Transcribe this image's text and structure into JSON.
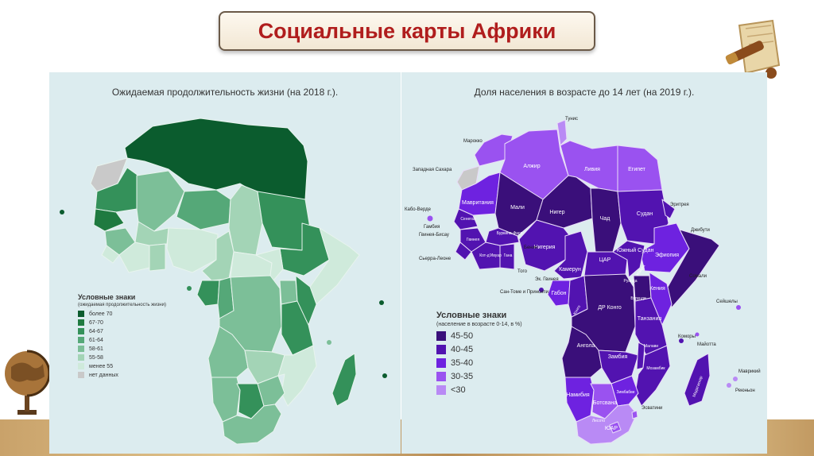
{
  "slide": {
    "title": "Социальные карты Африки"
  },
  "left_map": {
    "title": "Ожидаемая продолжительность жизни (на 2018 г.).",
    "legend_title": "Условные знаки",
    "legend_subtitle": "(ожидаемая продолжительность жизни)",
    "legend": [
      {
        "label": "более 70",
        "color": "#0b5c2e"
      },
      {
        "label": "67-70",
        "color": "#1f7a40"
      },
      {
        "label": "64-67",
        "color": "#34915a"
      },
      {
        "label": "61-64",
        "color": "#55a878"
      },
      {
        "label": "58-61",
        "color": "#7cbf98"
      },
      {
        "label": "55-58",
        "color": "#a3d4b6"
      },
      {
        "label": "менее 55",
        "color": "#cfeadb"
      },
      {
        "label": "нет данных",
        "color": "#c9c9c9"
      }
    ]
  },
  "right_map": {
    "title": "Доля населения в возрасте до 14 лет (на 2019 г.).",
    "legend_title": "Условные знаки",
    "legend_subtitle": "(население в возрасте 0-14, в %)",
    "legend": [
      {
        "label": "45-50",
        "color": "#3a0f7a"
      },
      {
        "label": "40-45",
        "color": "#5213b0"
      },
      {
        "label": "35-40",
        "color": "#6e22e0"
      },
      {
        "label": "30-35",
        "color": "#9a52f0"
      },
      {
        "label": "<30",
        "color": "#b98af5"
      }
    ],
    "labels": {
      "tunis": "Тунис",
      "morocco": "Марокко",
      "w_sahara": "Западная Сахара",
      "algeria": "Алжир",
      "libya": "Ливия",
      "egypt": "Египет",
      "cabo_verde": "Кабо-Верде",
      "mauritania": "Мавритания",
      "mali": "Мали",
      "niger": "Нигер",
      "chad": "Чад",
      "sudan": "Судан",
      "eritrea": "Эритрея",
      "senegal": "Сенегал",
      "gambia": "Гамбия",
      "guinea_bissau": "Гвинея-Бисау",
      "guinea": "Гвинея",
      "burkina": "Буркина-Фасо",
      "djibouti": "Джибути",
      "sierra_leone": "Сьерра-Леоне",
      "cote_divoire": "Кот-д'Ивуар",
      "ghana": "Гана",
      "togo": "Того",
      "benin": "Бенин",
      "nigeria": "Нигерия",
      "car": "ЦАР",
      "south_sudan": "Южный Судан",
      "ethiopia": "Эфиопия",
      "somalia": "Сомали",
      "cameroon": "Камерун",
      "eq_guinea": "Эк. Гвинея",
      "sao_tome": "Сан-Томе и Принсипи",
      "gabon": "Габон",
      "congo": "Конго",
      "uganda": "Уганда",
      "kenya": "Кения",
      "rwanda": "Руанда",
      "burundi": "Бурунди",
      "drc": "ДР Конго",
      "tanzania": "Танзания",
      "seychelles": "Сейшелы",
      "comoros": "Коморы",
      "mayotte": "Майотта",
      "angola": "Ангола",
      "malawi": "Малави",
      "zambia": "Замбия",
      "mozambique": "Мозамбик",
      "zimbabwe": "Зимбабве",
      "madagascar": "Мадагаскар",
      "mauritius": "Маврикий",
      "reunion": "Реюньон",
      "namibia": "Намибия",
      "botswana": "Ботсвана",
      "eswatini": "Эсватини",
      "lesotho": "Лесото",
      "rsa": "ЮАР"
    }
  }
}
